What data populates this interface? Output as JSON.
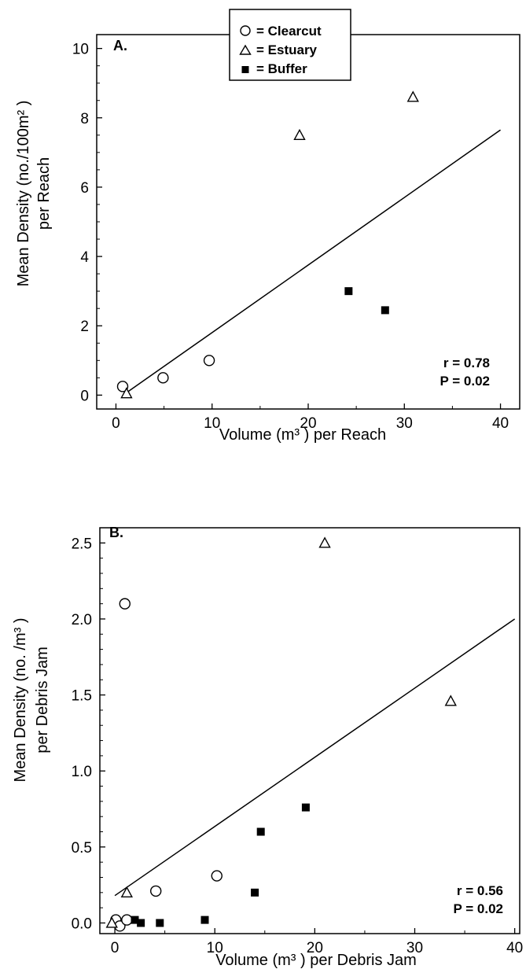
{
  "legend": {
    "items": [
      {
        "marker": "circle",
        "label": "= Clearcut"
      },
      {
        "marker": "triangle",
        "label": "= Estuary"
      },
      {
        "marker": "square",
        "label": "= Buffer"
      }
    ]
  },
  "chart_data": [
    {
      "type": "scatter",
      "panel_label": "A.",
      "xlabel": "Volume (m³ ) per Reach",
      "ylabel_lines": [
        "Mean Density (no./100m² )",
        "per Reach"
      ],
      "xlim": [
        -2,
        42
      ],
      "ylim": [
        -0.4,
        10.4
      ],
      "xticks": [
        0,
        10,
        20,
        30,
        40
      ],
      "yticks": [
        0,
        2,
        4,
        6,
        8,
        10
      ],
      "ytick_labels": [
        "0",
        "2",
        "4",
        "6",
        "8",
        "10"
      ],
      "series": [
        {
          "marker": "circle",
          "points": [
            [
              0.7,
              0.25
            ],
            [
              4.9,
              0.5
            ],
            [
              9.7,
              1.0
            ]
          ]
        },
        {
          "marker": "triangle",
          "points": [
            [
              1.1,
              0.05
            ],
            [
              19.1,
              7.5
            ],
            [
              30.9,
              8.6
            ]
          ]
        },
        {
          "marker": "square",
          "points": [
            [
              24.2,
              3.0
            ],
            [
              28.0,
              2.45
            ]
          ]
        }
      ],
      "fit_line": {
        "x": [
          1.0,
          40.0
        ],
        "y": [
          0.05,
          7.65
        ]
      },
      "stats": {
        "r": "r =  0.78",
        "p": "P =  0.02"
      }
    },
    {
      "type": "scatter",
      "panel_label": "B.",
      "xlabel": "Volume (m³ ) per Debris Jam",
      "ylabel_lines": [
        "Mean Density (no. /m³ )",
        "per Debris Jam"
      ],
      "xlim": [
        -1.5,
        40.5
      ],
      "ylim": [
        -0.07,
        2.6
      ],
      "xticks": [
        0,
        10,
        20,
        30,
        40
      ],
      "yticks": [
        0.0,
        0.5,
        1.0,
        1.5,
        2.0,
        2.5
      ],
      "ytick_labels": [
        "0.0",
        "0.5",
        "1.0",
        "1.5",
        "2.0",
        "2.5"
      ],
      "series": [
        {
          "marker": "circle",
          "points": [
            [
              0.1,
              0.02
            ],
            [
              0.5,
              -0.02
            ],
            [
              1.2,
              0.02
            ],
            [
              1.0,
              2.1
            ],
            [
              4.1,
              0.21
            ],
            [
              10.2,
              0.31
            ]
          ]
        },
        {
          "marker": "triangle",
          "points": [
            [
              -0.3,
              0.0
            ],
            [
              1.2,
              0.2
            ],
            [
              21.0,
              2.5
            ],
            [
              33.6,
              1.46
            ]
          ]
        },
        {
          "marker": "square",
          "points": [
            [
              2.0,
              0.02
            ],
            [
              2.6,
              0.0
            ],
            [
              4.5,
              0.0
            ],
            [
              9.0,
              0.02
            ],
            [
              14.0,
              0.2
            ],
            [
              14.6,
              0.6
            ],
            [
              19.1,
              0.76
            ]
          ]
        }
      ],
      "fit_line": {
        "x": [
          0.0,
          40.0
        ],
        "y": [
          0.18,
          2.0
        ]
      },
      "stats": {
        "r": "r =  0.56",
        "p": "P =  0.02"
      }
    }
  ]
}
